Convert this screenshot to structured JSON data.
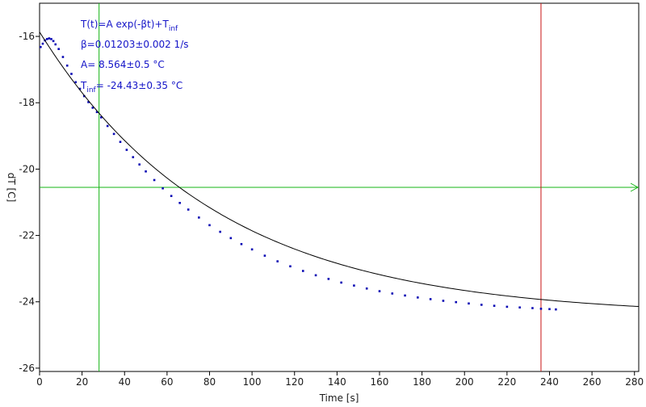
{
  "colors": {
    "data": "#0a0ab4",
    "fit": "#000000",
    "cursor_green": "#14b414",
    "cursor_red": "#c81414",
    "annotation": "#1414c8",
    "ylabel": "#1414c8"
  },
  "chart_data": {
    "type": "scatter",
    "title": "",
    "xlabel": "Time [s]",
    "ylabel": "dT [C]",
    "xlim": [
      0,
      282
    ],
    "ylim": [
      -26.1,
      -15
    ],
    "xticks": [
      0,
      20,
      40,
      60,
      80,
      100,
      120,
      140,
      160,
      180,
      200,
      220,
      240,
      260,
      280
    ],
    "yticks": [
      -16,
      -18,
      -20,
      -22,
      -24,
      -26
    ],
    "grid": false,
    "fit": {
      "formula": "T(t)=A exp(-βt)+T_inf",
      "A": 8.564,
      "beta": 0.01203,
      "T_inf": -24.43,
      "x_range": [
        0,
        282
      ]
    },
    "annotations": {
      "line1_main": "T(t)=A exp(-βt)+T",
      "line1_sub": "inf",
      "line2": "β=0.01203±0.002 1/s",
      "line3": "A= 8.564±0.5 °C",
      "line4_prefix": "T",
      "line4_sub": "inf",
      "line4_rest": "= -24.43±0.35 °C"
    },
    "cursors": {
      "vertical_green_x": 28,
      "vertical_red_x": 236,
      "horizontal_green_y": -20.55
    },
    "series": [
      {
        "x": [
          0.5,
          1.5,
          2.5,
          3.5,
          4.5,
          5.5,
          6.5,
          7.5,
          9,
          11,
          13,
          15,
          17,
          19,
          21,
          23,
          25,
          27,
          29,
          32,
          35,
          38,
          41,
          44,
          47,
          50,
          54,
          58,
          62,
          66,
          70,
          75,
          80,
          85,
          90,
          95,
          100,
          106,
          112,
          118,
          124,
          130,
          136,
          142,
          148,
          154,
          160,
          166,
          172,
          178,
          184,
          190,
          196,
          202,
          208,
          214,
          220,
          226,
          232,
          236,
          240,
          243
        ],
        "y": [
          -16.32,
          -16.22,
          -16.12,
          -16.08,
          -16.06,
          -16.08,
          -16.14,
          -16.24,
          -16.38,
          -16.62,
          -16.88,
          -17.13,
          -17.38,
          -17.58,
          -17.8,
          -17.98,
          -18.15,
          -18.28,
          -18.44,
          -18.7,
          -18.94,
          -19.18,
          -19.42,
          -19.64,
          -19.86,
          -20.07,
          -20.33,
          -20.58,
          -20.81,
          -21.02,
          -21.22,
          -21.46,
          -21.69,
          -21.89,
          -22.08,
          -22.26,
          -22.42,
          -22.61,
          -22.78,
          -22.93,
          -23.07,
          -23.2,
          -23.31,
          -23.42,
          -23.51,
          -23.6,
          -23.68,
          -23.75,
          -23.81,
          -23.87,
          -23.92,
          -23.97,
          -24.01,
          -24.05,
          -24.09,
          -24.12,
          -24.15,
          -24.17,
          -24.19,
          -24.21,
          -24.22,
          -24.23
        ]
      }
    ]
  }
}
